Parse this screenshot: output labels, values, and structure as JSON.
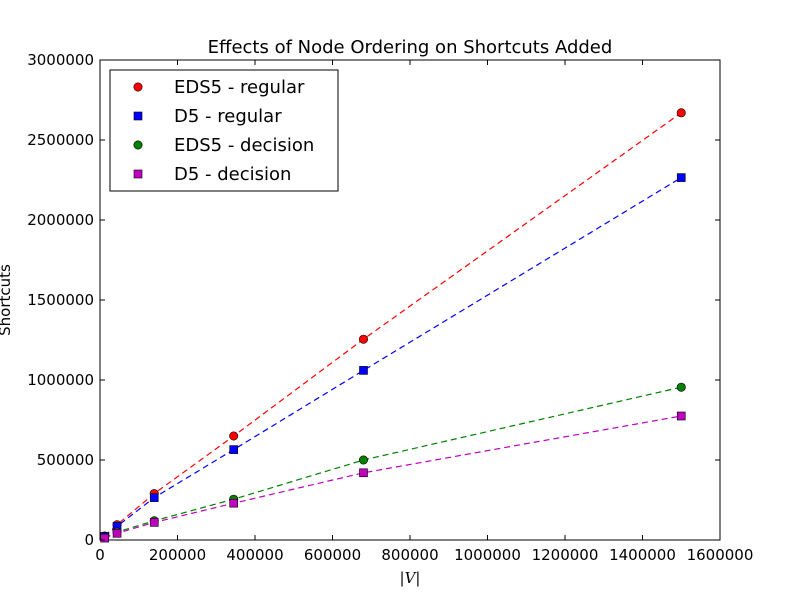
{
  "chart_data": {
    "type": "scatter",
    "title": "Effects of Node Ordering on Shortcuts Added",
    "xlabel": "|V|",
    "ylabel": "Shortcuts",
    "xlim": [
      0,
      1600000
    ],
    "ylim": [
      0,
      3000000
    ],
    "xticks": [
      "0",
      "200000",
      "400000",
      "600000",
      "800000",
      "1000000",
      "1200000",
      "1400000",
      "1600000"
    ],
    "yticks": [
      "0",
      "500000",
      "1000000",
      "1500000",
      "2000000",
      "2500000",
      "3000000"
    ],
    "grid": false,
    "legend_position": "top-left",
    "series": [
      {
        "name": "EDS5 - regular",
        "color": "#ff0000",
        "marker": "circle",
        "x": [
          12000,
          44000,
          140000,
          345000,
          680000,
          1500000
        ],
        "y": [
          25000,
          95000,
          290000,
          650000,
          1255000,
          2670000
        ]
      },
      {
        "name": "D5 - regular",
        "color": "#0000ff",
        "marker": "square",
        "x": [
          12000,
          44000,
          140000,
          345000,
          680000,
          1500000
        ],
        "y": [
          22000,
          85000,
          265000,
          565000,
          1060000,
          2265000
        ]
      },
      {
        "name": "EDS5 - decision",
        "color": "#008000",
        "marker": "circle",
        "x": [
          12000,
          44000,
          140000,
          345000,
          680000,
          1500000
        ],
        "y": [
          15000,
          50000,
          120000,
          255000,
          500000,
          955000
        ]
      },
      {
        "name": "D5 - decision",
        "color": "#bf00bf",
        "marker": "square",
        "x": [
          12000,
          44000,
          140000,
          345000,
          680000,
          1500000
        ],
        "y": [
          12000,
          42000,
          110000,
          230000,
          420000,
          775000
        ]
      }
    ]
  }
}
